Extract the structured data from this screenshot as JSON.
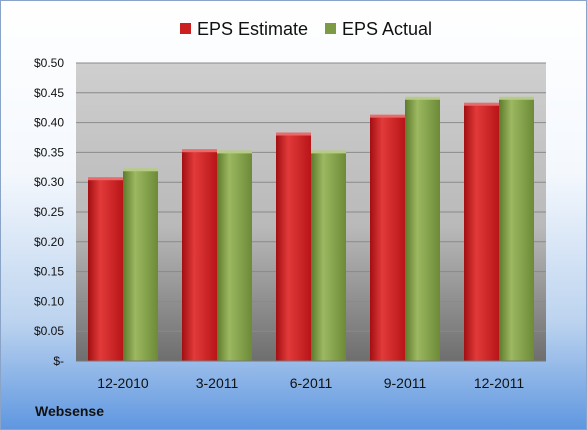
{
  "company": "Websense",
  "colors": {
    "estimate": "#cc1f1f",
    "actual": "#7d9a45",
    "plot_bg_top": "#cfcfcf",
    "plot_bg_bottom": "#6f6f6f"
  },
  "chart_data": {
    "type": "bar",
    "title": "",
    "xlabel": "",
    "ylabel": "",
    "categories": [
      "12-2010",
      "3-2011",
      "6-2011",
      "9-2011",
      "12-2011"
    ],
    "series": [
      {
        "name": "EPS Estimate",
        "values": [
          0.305,
          0.352,
          0.38,
          0.41,
          0.43
        ]
      },
      {
        "name": "EPS Actual",
        "values": [
          0.32,
          0.35,
          0.35,
          0.44,
          0.44
        ]
      }
    ],
    "ylim": [
      0,
      0.5
    ],
    "yticks": [
      0,
      0.05,
      0.1,
      0.15,
      0.2,
      0.25,
      0.3,
      0.35,
      0.4,
      0.45,
      0.5
    ],
    "ytick_labels": [
      "$-",
      "$0.05",
      "$0.10",
      "$0.15",
      "$0.20",
      "$0.25",
      "$0.30",
      "$0.35",
      "$0.40",
      "$0.45",
      "$0.50"
    ],
    "grid": true,
    "legend": "top"
  }
}
